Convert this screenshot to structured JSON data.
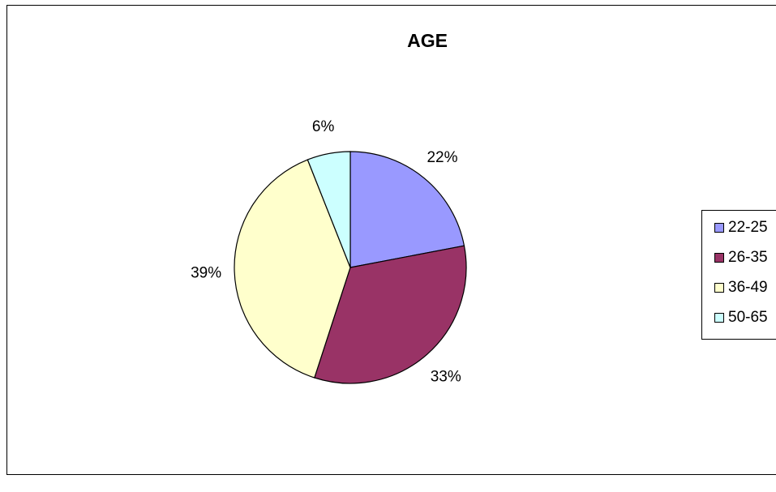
{
  "chart_data": {
    "type": "pie",
    "title": "AGE",
    "categories": [
      "22-25",
      "26-35",
      "36-49",
      "50-65"
    ],
    "values": [
      22,
      33,
      39,
      6
    ],
    "labels": [
      "22%",
      "33%",
      "39%",
      "6%"
    ],
    "colors": [
      "#9999ff",
      "#993366",
      "#ffffcc",
      "#ccffff"
    ],
    "legend": "right"
  }
}
